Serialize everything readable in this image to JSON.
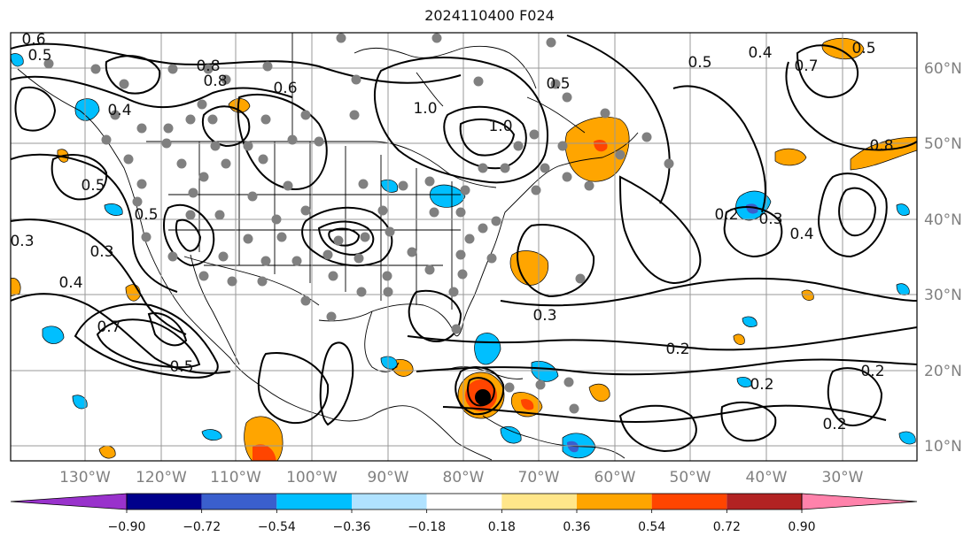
{
  "title": "2024110400 F024",
  "map": {
    "lat_labels": [
      "60°N",
      "50°N",
      "40°N",
      "30°N",
      "20°N",
      "10°N"
    ],
    "lon_labels": [
      "130°W",
      "120°W",
      "110°W",
      "100°W",
      "90°W",
      "80°W",
      "70°W",
      "60°W",
      "50°W",
      "40°W",
      "30°W"
    ],
    "contour_labels": [
      "0.6",
      "0.5",
      "0.4",
      "0.8",
      "0.8",
      "0.6",
      "0.5",
      "0.3",
      "1.0",
      "1.0",
      "0.5",
      "0.5",
      "0.4",
      "0.7",
      "0.8",
      "0.5",
      "0.3",
      "0.4",
      "0.3",
      "0.2",
      "0.4",
      "0.2",
      "0.2",
      "0.2",
      "0.2",
      "0.5",
      "0.5",
      "0.3",
      "0.7"
    ]
  },
  "colorbar": {
    "tick_labels": [
      "−0.90",
      "−0.72",
      "−0.54",
      "−0.36",
      "−0.18",
      "0.18",
      "0.36",
      "0.54",
      "0.72",
      "0.90"
    ],
    "colors": [
      "#9932CC",
      "#00008B",
      "#3A5FCD",
      "#00BFFF",
      "#B0E2FF",
      "#FFFFFF",
      "#FFE68A",
      "#FFA500",
      "#FF4500",
      "#B22222",
      "#FF82AB"
    ]
  },
  "colors": {
    "grid": "#999999",
    "contour": "#000000",
    "coast": "#000000",
    "station_dot": "#808080"
  }
}
